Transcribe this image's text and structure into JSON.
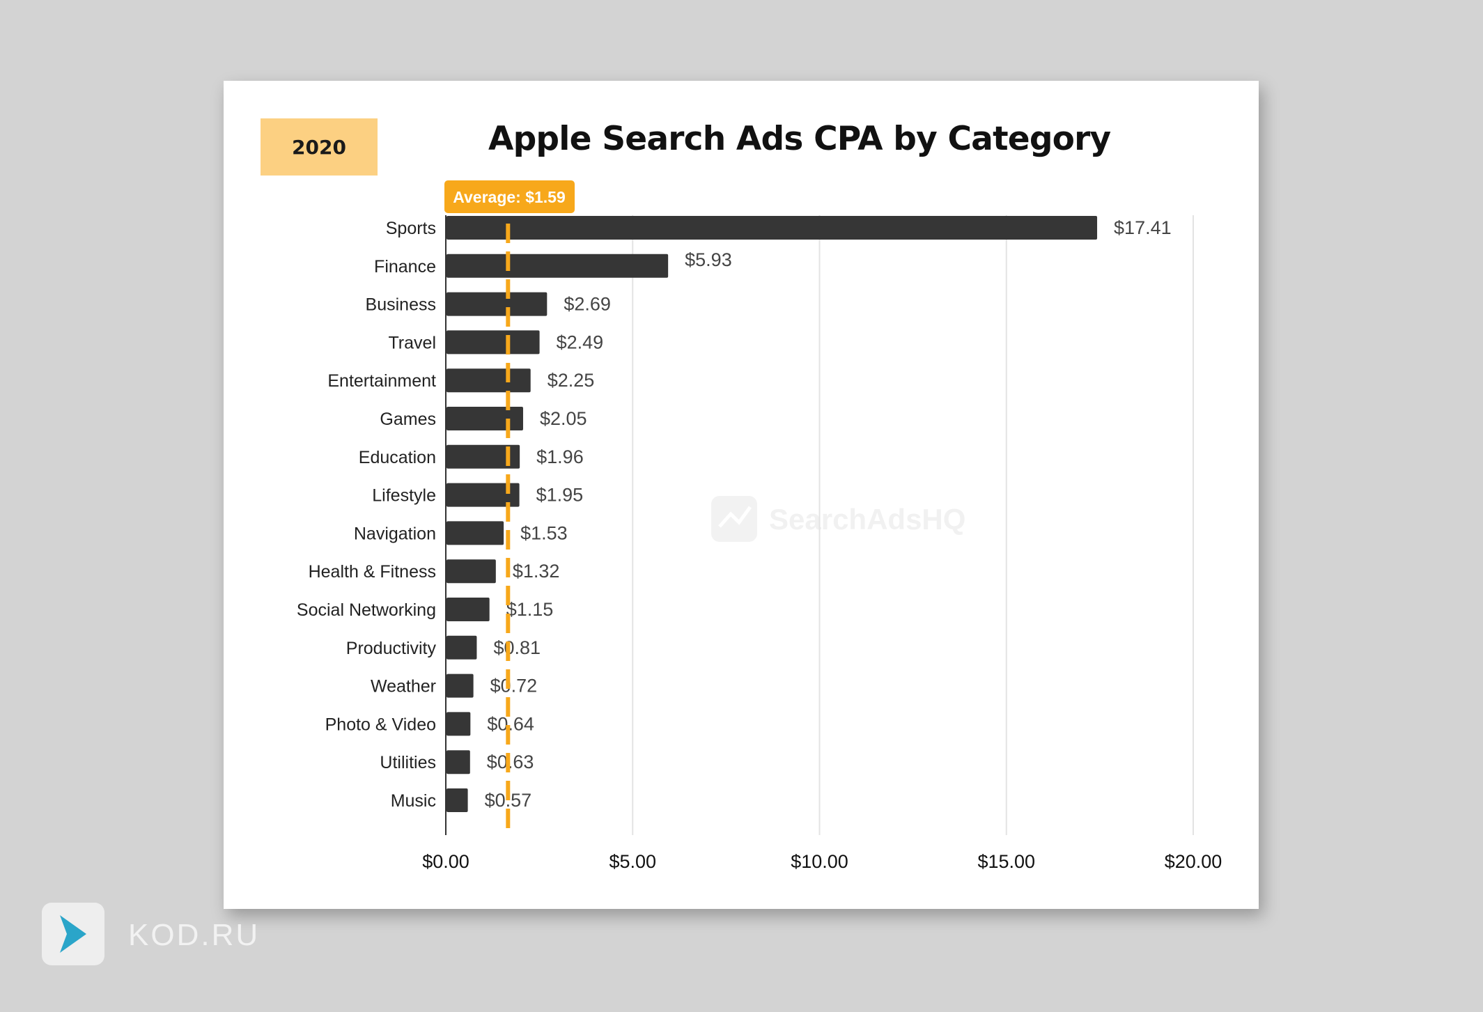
{
  "badge": {
    "year": "2020"
  },
  "title": "Apple Search Ads CPA by Category",
  "watermark": {
    "text": "SearchAdsHQ",
    "icon": "chart-line-icon"
  },
  "footer": {
    "brand": "KOD.RU",
    "icon": "play-arrow-icon"
  },
  "colors": {
    "bar": "#363636",
    "average": "#f7a81b",
    "badge": "#fcd082",
    "grid": "#e3e3e3"
  },
  "chart_data": {
    "type": "bar",
    "orientation": "horizontal",
    "title": "Apple Search Ads CPA by Category",
    "categories": [
      "Sports",
      "Finance",
      "Business",
      "Travel",
      "Entertainment",
      "Games",
      "Education",
      "Lifestyle",
      "Navigation",
      "Health & Fitness",
      "Social Networking",
      "Productivity",
      "Weather",
      "Photo & Video",
      "Utilities",
      "Music"
    ],
    "values": [
      17.41,
      5.93,
      2.69,
      2.49,
      2.25,
      2.05,
      1.96,
      1.95,
      1.53,
      1.32,
      1.15,
      0.81,
      0.72,
      0.64,
      0.63,
      0.57
    ],
    "value_labels": [
      "$17.41",
      "$5.93",
      "$2.69",
      "$2.49",
      "$2.25",
      "$2.05",
      "$1.96",
      "$1.95",
      "$1.53",
      "$1.32",
      "$1.15",
      "$0.81",
      "$0.72",
      "$0.64",
      "$0.63",
      "$0.57"
    ],
    "xlim": [
      0,
      20
    ],
    "xticks": [
      0,
      5,
      10,
      15,
      20
    ],
    "xtick_labels": [
      "$0.00",
      "$5.00",
      "$10.00",
      "$15.00",
      "$20.00"
    ],
    "grid": true,
    "average": {
      "value": 1.59,
      "label": "Average: $1.59"
    }
  }
}
